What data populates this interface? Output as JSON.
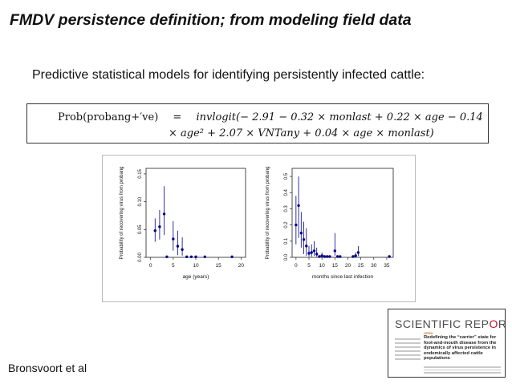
{
  "slide": {
    "title": "FMDV persistence definition; from modeling field data",
    "bullet": "Predictive statistical models for identifying persistently infected cattle:",
    "footer": "Bronsvoort et al"
  },
  "formula": {
    "lhs": "Prob(probang+′ve)",
    "eq": "=",
    "fn": "invlogit",
    "line1_rest": "(− 2.91 − 0.32 × monlast + 0.22 × age − 0.14",
    "line2": "× age² + 2.07 × VNTany + 0.04 × age × monlast)"
  },
  "journal": {
    "name_pre": "SCIENTIFIC REP",
    "name_o": "O",
    "name_post": "RTS",
    "open": "OPEN",
    "article_title": "Redefining the “carrier” state for foot-and-mouth disease from the dynamics of virus persistence in endemically affected cattle populations"
  },
  "colors": {
    "points": "#00008b",
    "axis": "#222222",
    "logo_red": "#c8102e"
  },
  "chart_data": [
    {
      "type": "scatter",
      "xlabel": "age (years)",
      "ylabel": "Probability of recovering virus from probang",
      "xlim": [
        -1,
        21
      ],
      "ylim": [
        0,
        0.16
      ],
      "xticks": [
        0,
        5,
        10,
        15,
        20
      ],
      "yticks": [
        0.0,
        0.05,
        0.1,
        0.15
      ],
      "ytick_labels": [
        "0.00",
        "0.05",
        "0.10",
        "0.15"
      ],
      "points": [
        {
          "x": 1,
          "y": 0.048,
          "lo": 0.028,
          "hi": 0.07
        },
        {
          "x": 2,
          "y": 0.055,
          "lo": 0.032,
          "hi": 0.085
        },
        {
          "x": 3,
          "y": 0.078,
          "lo": 0.04,
          "hi": 0.128
        },
        {
          "x": 3.6,
          "y": 0.001,
          "lo": 0.001,
          "hi": 0.001
        },
        {
          "x": 5,
          "y": 0.033,
          "lo": 0.012,
          "hi": 0.065
        },
        {
          "x": 6,
          "y": 0.02,
          "lo": 0.004,
          "hi": 0.048
        },
        {
          "x": 7,
          "y": 0.014,
          "lo": 0.003,
          "hi": 0.036
        },
        {
          "x": 8,
          "y": 0.001,
          "lo": 0.001,
          "hi": 0.001
        },
        {
          "x": 9,
          "y": 0.001,
          "lo": 0.001,
          "hi": 0.001
        },
        {
          "x": 10,
          "y": 0.001,
          "lo": 0.001,
          "hi": 0.001
        },
        {
          "x": 12,
          "y": 0.001,
          "lo": 0.001,
          "hi": 0.001
        },
        {
          "x": 18,
          "y": 0.001,
          "lo": 0.001,
          "hi": 0.001
        }
      ]
    },
    {
      "type": "scatter",
      "xlabel": "months since last infection",
      "ylabel": "Probability of recovering virus from probang",
      "xlim": [
        -1.5,
        37.5
      ],
      "ylim": [
        0,
        0.55
      ],
      "xticks": [
        0,
        5,
        10,
        15,
        20,
        25,
        30,
        35
      ],
      "yticks": [
        0.0,
        0.1,
        0.2,
        0.3,
        0.4,
        0.5
      ],
      "ytick_labels": [
        "0.0",
        "0.1",
        "0.2",
        "0.3",
        "0.4",
        "0.5"
      ],
      "points": [
        {
          "x": 0,
          "y": 0.2,
          "lo": 0.08,
          "hi": 0.38
        },
        {
          "x": 1,
          "y": 0.32,
          "lo": 0.12,
          "hi": 0.5
        },
        {
          "x": 2,
          "y": 0.15,
          "lo": 0.06,
          "hi": 0.28
        },
        {
          "x": 3,
          "y": 0.11,
          "lo": 0.02,
          "hi": 0.22
        },
        {
          "x": 4,
          "y": 0.07,
          "lo": 0.01,
          "hi": 0.18
        },
        {
          "x": 5,
          "y": 0.025,
          "lo": 0.005,
          "hi": 0.07
        },
        {
          "x": 6,
          "y": 0.03,
          "lo": 0.005,
          "hi": 0.08
        },
        {
          "x": 7,
          "y": 0.04,
          "lo": 0.01,
          "hi": 0.1
        },
        {
          "x": 8,
          "y": 0.02,
          "lo": 0.004,
          "hi": 0.06
        },
        {
          "x": 9,
          "y": 0.005,
          "lo": 0.001,
          "hi": 0.005
        },
        {
          "x": 10,
          "y": 0.01,
          "lo": 0.002,
          "hi": 0.03
        },
        {
          "x": 11,
          "y": 0.005,
          "lo": 0.001,
          "hi": 0.005
        },
        {
          "x": 12,
          "y": 0.005,
          "lo": 0.001,
          "hi": 0.005
        },
        {
          "x": 13,
          "y": 0.005,
          "lo": 0.001,
          "hi": 0.005
        },
        {
          "x": 15,
          "y": 0.04,
          "lo": 0.01,
          "hi": 0.15
        },
        {
          "x": 16,
          "y": 0.005,
          "lo": 0.001,
          "hi": 0.005
        },
        {
          "x": 17,
          "y": 0.005,
          "lo": 0.001,
          "hi": 0.005
        },
        {
          "x": 22,
          "y": 0.005,
          "lo": 0.001,
          "hi": 0.005
        },
        {
          "x": 23,
          "y": 0.01,
          "lo": 0.002,
          "hi": 0.03
        },
        {
          "x": 24,
          "y": 0.03,
          "lo": 0.008,
          "hi": 0.07
        },
        {
          "x": 36,
          "y": 0.005,
          "lo": 0.001,
          "hi": 0.005
        }
      ]
    }
  ]
}
